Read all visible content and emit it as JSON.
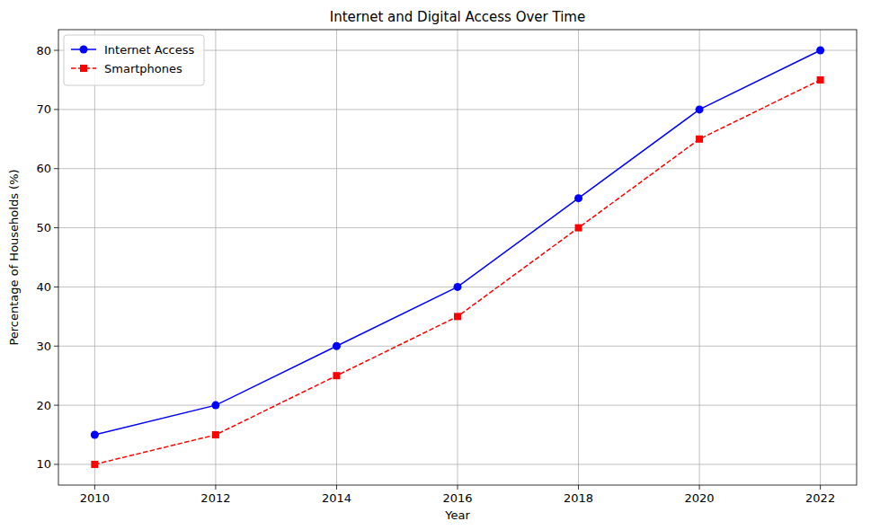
{
  "chart_data": {
    "type": "line",
    "title": "Internet and Digital Access Over Time",
    "x_label": "Year",
    "y_label": "Percentage of Households (%)",
    "x": [
      2010,
      2012,
      2014,
      2016,
      2018,
      2020,
      2022
    ],
    "series": [
      {
        "name": "Internet Access",
        "color": "#0000ff",
        "marker": "circle",
        "line_style": "solid",
        "values": [
          15,
          20,
          30,
          40,
          55,
          70,
          80
        ]
      },
      {
        "name": "Smartphones",
        "color": "#ff0000",
        "marker": "square",
        "line_style": "dashed",
        "values": [
          10,
          15,
          25,
          35,
          50,
          65,
          75
        ]
      }
    ],
    "xlim": [
      2009.4,
      2022.6
    ],
    "xticks": [
      2010,
      2012,
      2014,
      2016,
      2018,
      2020,
      2022
    ],
    "ylim": [
      6.5,
      83.5
    ],
    "yticks": [
      10,
      20,
      30,
      40,
      50,
      60,
      70,
      80
    ],
    "grid": true,
    "legend": "upper left"
  }
}
